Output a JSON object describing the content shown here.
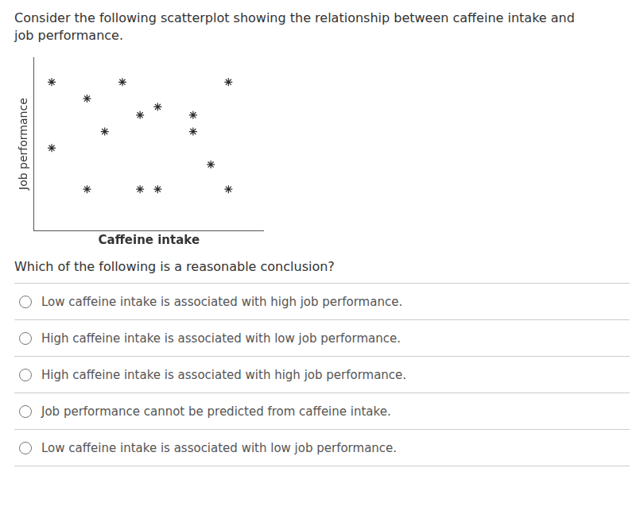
{
  "chart_data": {
    "type": "scatter",
    "title": "Consider the following scatterplot showing the relationship between caffeine intake and\njob performance.",
    "xlabel": "Caffeine intake",
    "ylabel": "Job performance",
    "x": [
      0.5,
      2.5,
      5.5,
      1.5,
      3.5,
      3.0,
      4.5,
      2.0,
      4.5,
      0.5,
      1.5,
      3.5,
      5.0,
      5.5,
      3.0
    ],
    "values": [
      9.0,
      9.0,
      9.0,
      8.0,
      7.5,
      7.0,
      7.0,
      6.0,
      6.0,
      5.0,
      2.5,
      2.5,
      4.0,
      2.5,
      2.5
    ],
    "color": "#2a2a2a",
    "marker": "star",
    "xlim": [
      0,
      6.5
    ],
    "ylim": [
      0,
      10.5
    ],
    "tick_labels": false,
    "grid": false,
    "annotations": [
      "Which of the following is a reasonable conclusion?",
      "Low caffeine intake is associated with high job performance.",
      "High caffeine intake is associated with low job performance.",
      "High caffeine intake is associated with high job performance.",
      "Job performance cannot be predicted from caffeine intake.",
      "Low caffeine intake is associated with low job performance."
    ]
  }
}
